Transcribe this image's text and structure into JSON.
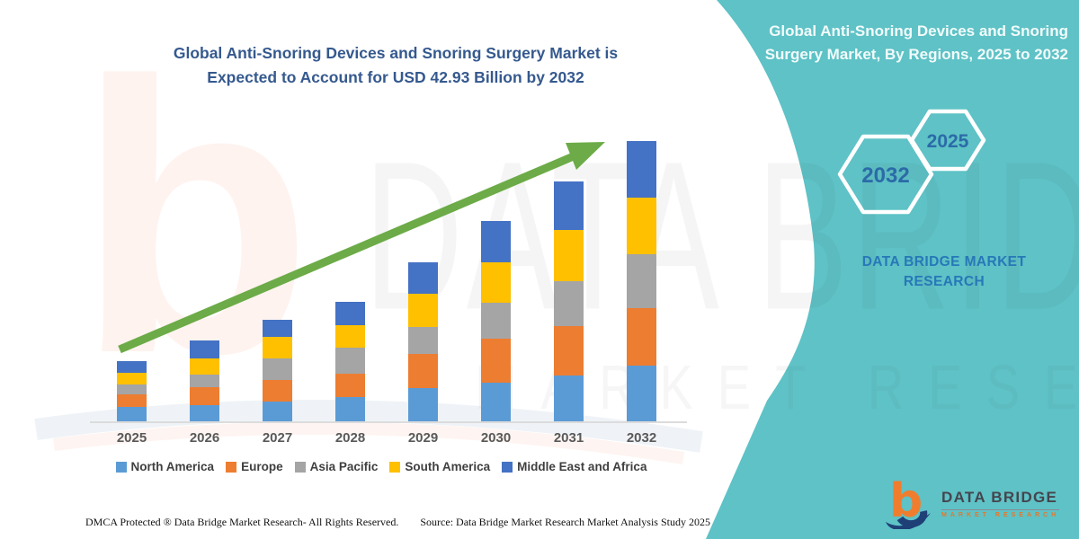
{
  "page": {
    "background": "#ffffff",
    "teal": "#5EC2C6"
  },
  "headline": {
    "line1": "Global Anti-Snoring Devices and Snoring Surgery Market is",
    "line2": "Expected to Account for USD 42.93 Billion by 2032"
  },
  "side_panel": {
    "title": "Global Anti-Snoring Devices and Snoring Surgery Market, By Regions, 2025 to 2032",
    "hexagons": [
      {
        "label": "2032"
      },
      {
        "label": "2025"
      }
    ],
    "brand_text": "DATA BRIDGE MARKET RESEARCH"
  },
  "logo": {
    "name_top": "DATA BRIDGE",
    "name_bottom": "MARKET RESEARCH"
  },
  "footer": {
    "left": "DMCA Protected ® Data Bridge Market Research-  All Rights Reserved.",
    "right": "Source: Data Bridge Market Research  Market Analysis Study 2025"
  },
  "watermark": {
    "big": "DATA BRIDGE",
    "row": "MARKET RESEARCH",
    "letter_b": "b"
  },
  "chart_data": {
    "type": "bar",
    "stacked": true,
    "title": "Global Anti-Snoring Devices and Snoring Surgery Market is Expected to Account for USD 42.93 Billion by 2032",
    "unit": "USD Billion",
    "categories": [
      "2025",
      "2026",
      "2027",
      "2028",
      "2029",
      "2030",
      "2031",
      "2032"
    ],
    "series": [
      {
        "name": "North America",
        "color": "#5B9BD5",
        "values": [
          2.2,
          2.5,
          3.1,
          3.7,
          5.1,
          5.9,
          7.0,
          8.5
        ]
      },
      {
        "name": "Europe",
        "color": "#ED7D31",
        "values": [
          1.9,
          2.7,
          3.3,
          3.6,
          5.2,
          6.7,
          7.6,
          8.8
        ]
      },
      {
        "name": "Asia Pacific",
        "color": "#A5A5A5",
        "values": [
          1.5,
          1.9,
          3.2,
          4.0,
          4.1,
          5.6,
          6.9,
          8.3
        ]
      },
      {
        "name": "South America",
        "color": "#FFC000",
        "values": [
          1.8,
          2.6,
          3.3,
          3.4,
          5.1,
          6.2,
          7.8,
          8.7
        ]
      },
      {
        "name": "Middle East and Africa",
        "color": "#4472C4",
        "values": [
          1.8,
          2.7,
          2.6,
          3.6,
          4.9,
          6.3,
          7.4,
          8.63
        ]
      }
    ],
    "totals": [
      9.2,
      12.4,
      15.5,
      18.3,
      24.4,
      30.7,
      36.7,
      42.93
    ],
    "ylim": [
      0,
      45
    ],
    "axis_visible": false,
    "grid": false,
    "legend_position": "bottom",
    "trend_arrow": true,
    "trend_color": "#6CAB47"
  }
}
